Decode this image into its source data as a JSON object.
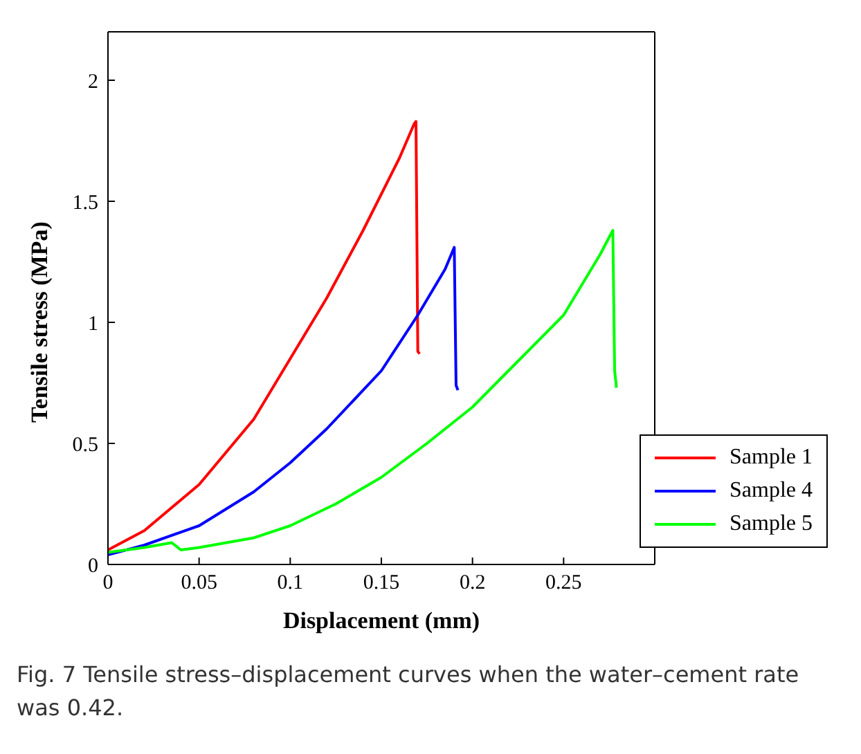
{
  "chart_data": {
    "type": "line",
    "xlabel": "Displacement (mm)",
    "ylabel": "Tensile stress (MPa)",
    "xlim": [
      0,
      0.3
    ],
    "ylim": [
      0,
      2.2
    ],
    "xticks": [
      0,
      0.05,
      0.1,
      0.15,
      0.2,
      0.25
    ],
    "yticks": [
      0,
      0.5,
      1,
      1.5,
      2
    ],
    "grid": false,
    "legend": "bottom right",
    "marker": "none",
    "line_style": "solid",
    "series": [
      {
        "name": "Sample 1",
        "color": "#ff0000",
        "x": [
          0,
          0.02,
          0.05,
          0.08,
          0.1,
          0.12,
          0.14,
          0.16,
          0.168,
          0.169,
          0.17,
          0.171
        ],
        "values": [
          0.06,
          0.14,
          0.33,
          0.6,
          0.85,
          1.1,
          1.38,
          1.68,
          1.82,
          1.83,
          0.88,
          0.87
        ]
      },
      {
        "name": "Sample 4",
        "color": "#0000ff",
        "x": [
          0,
          0.02,
          0.05,
          0.08,
          0.1,
          0.12,
          0.15,
          0.17,
          0.185,
          0.19,
          0.191,
          0.192
        ],
        "values": [
          0.04,
          0.08,
          0.16,
          0.3,
          0.42,
          0.56,
          0.8,
          1.03,
          1.22,
          1.31,
          0.74,
          0.72
        ]
      },
      {
        "name": "Sample 5",
        "color": "#00ff00",
        "x": [
          0,
          0.02,
          0.035,
          0.04,
          0.05,
          0.08,
          0.1,
          0.125,
          0.15,
          0.175,
          0.2,
          0.225,
          0.25,
          0.27,
          0.277,
          0.278,
          0.279
        ],
        "values": [
          0.05,
          0.07,
          0.09,
          0.06,
          0.07,
          0.11,
          0.16,
          0.25,
          0.36,
          0.5,
          0.65,
          0.84,
          1.03,
          1.28,
          1.38,
          0.8,
          0.73
        ]
      }
    ],
    "annotations": [
      "Fig. 7  Tensile stress–displacement curves when the water–cement rate was 0.42."
    ]
  }
}
